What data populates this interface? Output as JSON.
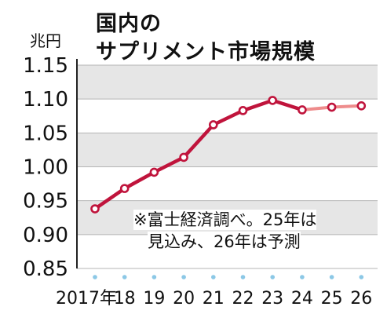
{
  "title": {
    "line1": "国内の",
    "line2": "サプリメント市場規模"
  },
  "unit": "兆円",
  "note": {
    "line1": "※富士経済調べ。25年は",
    "line2": "見込み、26年は予測"
  },
  "colors": {
    "actual_line": "#c0143c",
    "forecast_line": "#ee8c8c",
    "band": "#e6e6e6",
    "grid": "#b4b4b4",
    "marker_fill": "#ffffff",
    "tick_dot": "#8cc8e6"
  },
  "chart_data": {
    "type": "line",
    "title": "国内のサプリメント市場規模",
    "ylabel": "兆円",
    "xlabel": "",
    "ylim": [
      0.85,
      1.15
    ],
    "yticks": [
      "1.15",
      "1.10",
      "1.05",
      "1.00",
      "0.95",
      "0.90",
      "0.85"
    ],
    "categories": [
      "2017年",
      "18",
      "19",
      "20",
      "21",
      "22",
      "23",
      "24",
      "25",
      "26"
    ],
    "values": [
      0.938,
      0.968,
      0.992,
      1.014,
      1.062,
      1.083,
      1.098,
      1.084,
      1.088,
      1.09
    ],
    "segments": {
      "actual": [
        0,
        7
      ],
      "forecast": [
        7,
        9
      ]
    },
    "grid": true,
    "legend": "none"
  }
}
